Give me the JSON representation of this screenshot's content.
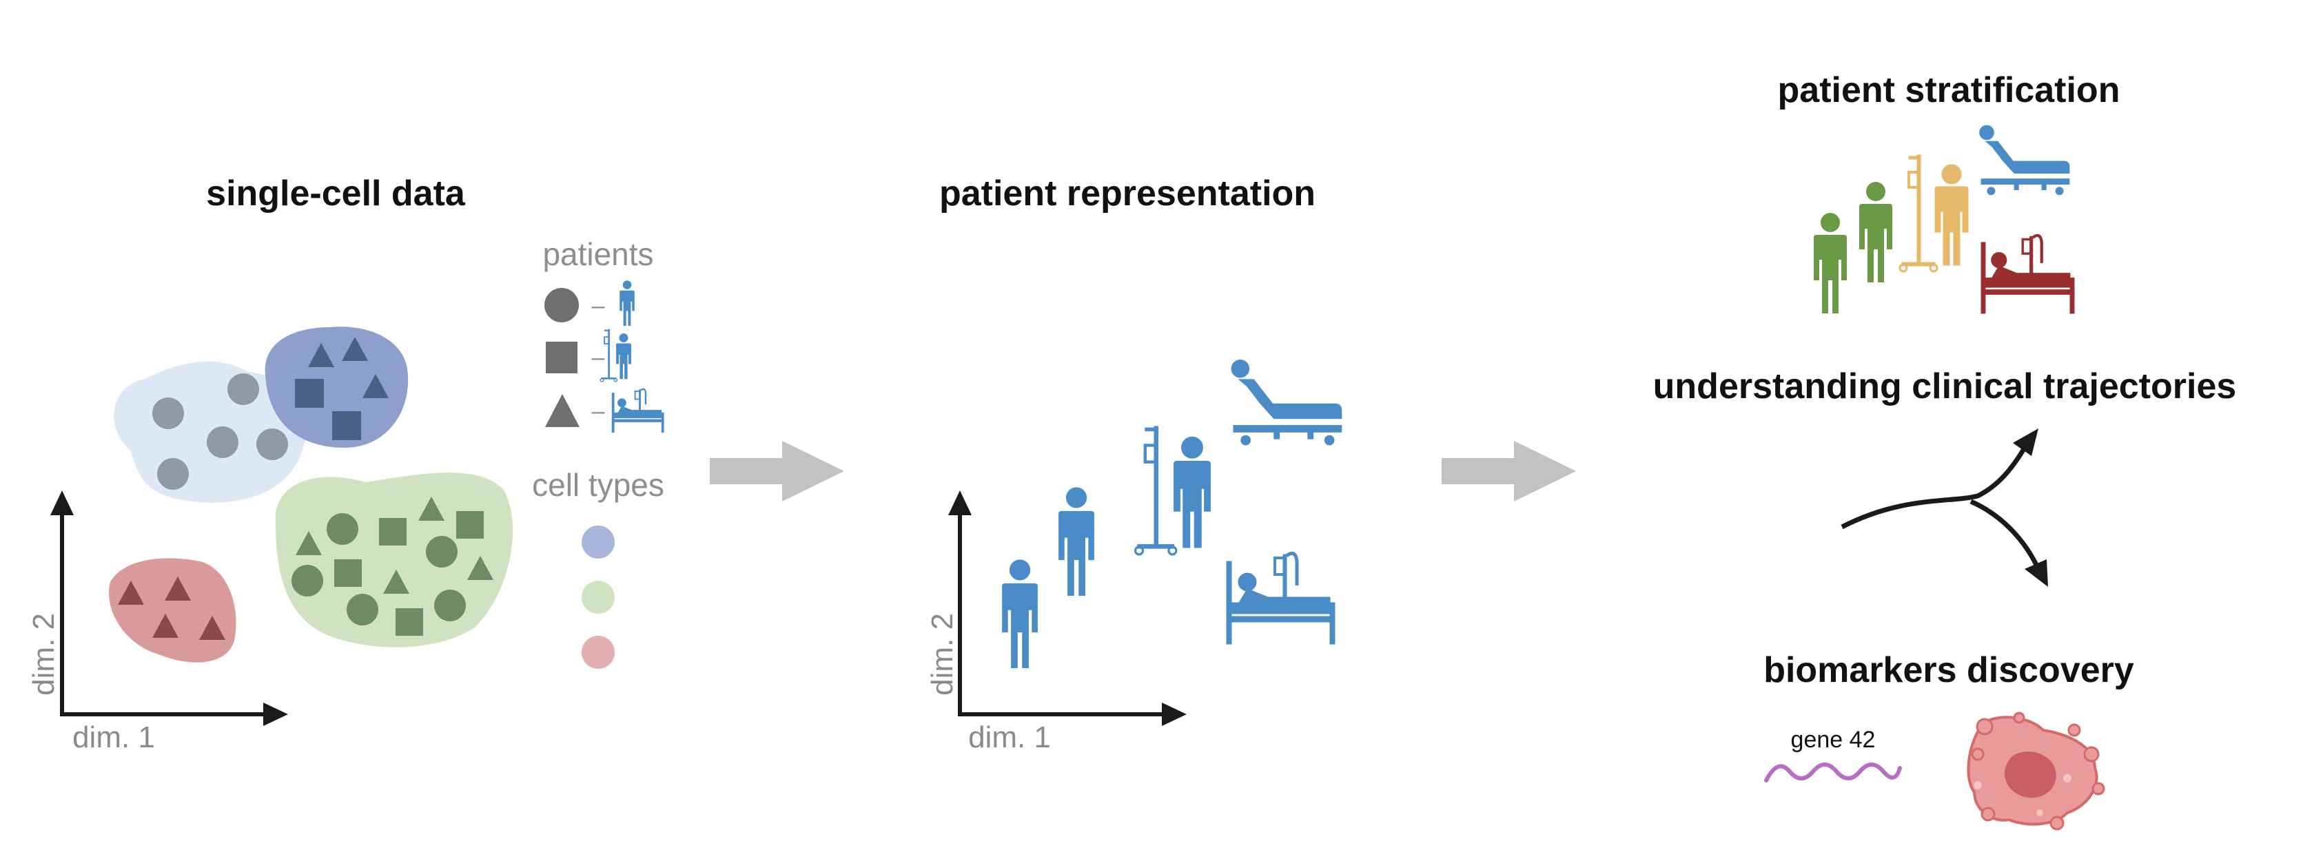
{
  "panels": {
    "single_cell": {
      "title": "single-cell data",
      "xlabel": "dim. 1",
      "ylabel": "dim. 2",
      "legend_patients_title": "patients",
      "legend_cell_types_title": "cell types",
      "legend_dash": "–"
    },
    "representation": {
      "title": "patient representation",
      "xlabel": "dim. 1",
      "ylabel": "dim. 2"
    },
    "outcomes": {
      "stratification_title": "patient stratification",
      "trajectories_title": "understanding clinical trajectories",
      "biomarkers_title": "biomarkers discovery",
      "gene_label": "gene 42"
    }
  },
  "colors": {
    "cluster_light_blue": "#dce8f5",
    "cluster_blue": "#8e9fce",
    "cluster_green": "#cfe3c0",
    "cluster_red": "#d99a9a",
    "marker_gray": "#8f9aa6",
    "marker_dark_blue": "#4e5f86",
    "marker_green": "#6f8a68",
    "marker_red": "#8a4a4a",
    "patient_blue": "#4a8cc8",
    "patient_green": "#6a9a46",
    "patient_yellow": "#e6b86a",
    "patient_red": "#9a2e2e",
    "arrow_gray": "#c2c2c2",
    "dna_purple": "#b86cc4",
    "cell_pink": "#e99a9a"
  },
  "icons": {
    "standing_patient": "person-icon",
    "iv_patient": "iv-patient-icon",
    "bed_patient": "hospital-bed-icon",
    "stretcher_patient": "stretcher-icon",
    "dna": "dna-wave-icon",
    "tumor_cell": "tumor-cell-icon"
  }
}
